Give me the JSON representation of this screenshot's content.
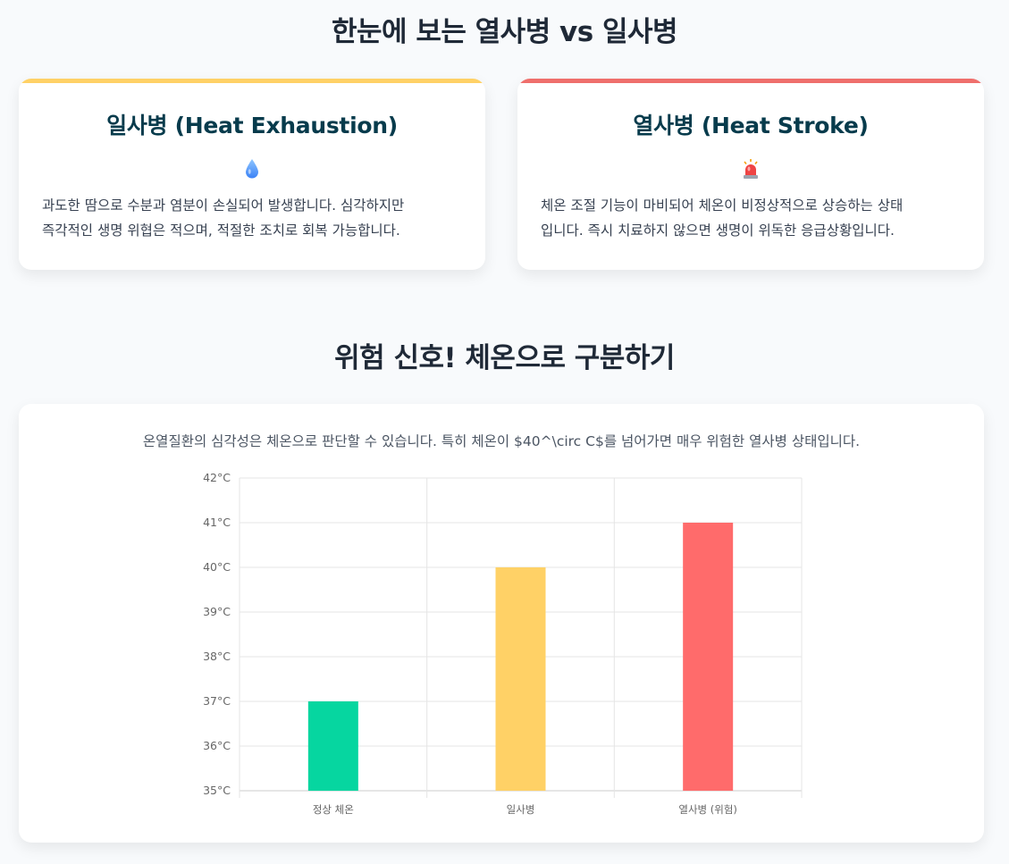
{
  "sections": {
    "comparison_title": "한눈에 보는 열사병 vs 일사병",
    "signal_title": "위험 신호! 체온으로 구분하기"
  },
  "cards": {
    "exhaustion": {
      "title": "일사병 (Heat Exhaustion)",
      "icon": "droplet-icon",
      "line1": "과도한 땀으로 수분과 염분이 손실되어 발생합니다. 심각하지만",
      "line2": "즉각적인 생명 위협은 적으며, 적절한 조치로 회복 가능합니다.",
      "accent": "#ffd166"
    },
    "stroke": {
      "title": "열사병 (Heat Stroke)",
      "icon": "siren-icon",
      "line1": "체온 조절 기능이 마비되어 체온이 비정상적으로 상승하는 상태",
      "line2": "입니다. 즉시 치료하지 않으면 생명이 위독한 응급상황입니다.",
      "accent": "#ef6f6c"
    }
  },
  "chart_desc": "온열질환의 심각성은 체온으로 판단할 수 있습니다. 특히 체온이 $40^\\circ C$를 넘어가면 매우 위험한 열사병 상태입니다.",
  "chart_data": {
    "type": "bar",
    "categories": [
      "정상 체온",
      "일사병",
      "열사병 (위험)"
    ],
    "values": [
      37,
      40,
      41
    ],
    "colors": [
      "#06d6a0",
      "#ffd166",
      "#ff6b6b"
    ],
    "ylim": [
      35,
      42
    ],
    "yticks": [
      "35°C",
      "36°C",
      "37°C",
      "38°C",
      "39°C",
      "40°C",
      "41°C",
      "42°C"
    ],
    "title": "",
    "xlabel": "",
    "ylabel": "",
    "grid": true,
    "legend": "none"
  }
}
